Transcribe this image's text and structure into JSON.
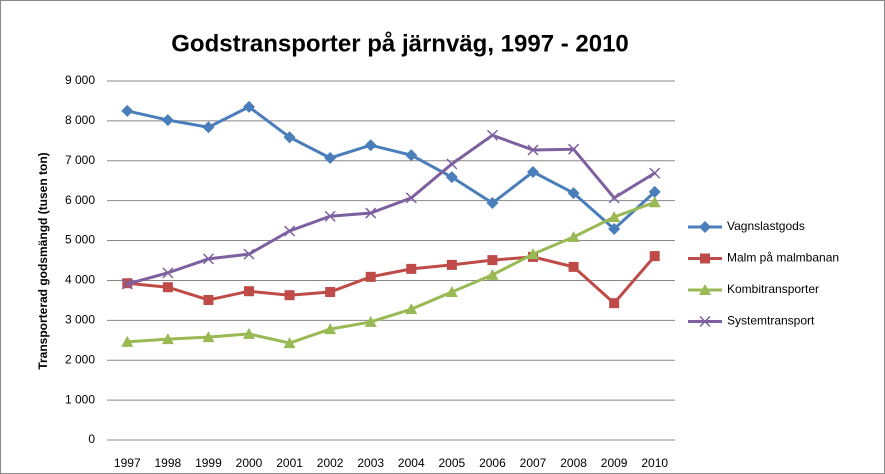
{
  "chart_data": {
    "type": "line",
    "title": "Godstransporter på järnväg, 1997 - 2010",
    "y_label": "Transporterad  godsmängd (tusen ton)",
    "categories": [
      "1997",
      "1998",
      "1999",
      "2000",
      "2001",
      "2002",
      "2003",
      "2004",
      "2005",
      "2006",
      "2007",
      "2008",
      "2009",
      "2010"
    ],
    "series": [
      {
        "name": "Vagnslastgods",
        "color": "#4a7ebb",
        "marker": "diamond",
        "values": [
          8250,
          8020,
          7840,
          8350,
          7590,
          7070,
          7390,
          7140,
          6590,
          5940,
          6720,
          6190,
          5290,
          6220
        ]
      },
      {
        "name": "Malm på malmbanan",
        "color": "#be4b48",
        "marker": "square",
        "values": [
          3930,
          3830,
          3510,
          3730,
          3630,
          3710,
          4090,
          4290,
          4390,
          4510,
          4590,
          4340,
          3430,
          4610
        ]
      },
      {
        "name": "Kombitransporter",
        "color": "#98b954",
        "marker": "triangle",
        "values": [
          2460,
          2530,
          2580,
          2660,
          2430,
          2780,
          2960,
          3280,
          3710,
          4140,
          4660,
          5090,
          5590,
          5960
        ]
      },
      {
        "name": "Systemtransport",
        "color": "#7d60a0",
        "marker": "x",
        "values": [
          3910,
          4190,
          4540,
          4660,
          5240,
          5610,
          5690,
          6070,
          6920,
          7640,
          7270,
          7290,
          6070,
          6690
        ]
      }
    ],
    "ylim": [
      0,
      9000
    ],
    "yticks": [
      0,
      {
        "value": 1000,
        "label": "1 000"
      },
      {
        "value": 2000,
        "label": "2 000"
      },
      {
        "value": 3000,
        "label": "3 000"
      },
      {
        "value": 4000,
        "label": "4 000"
      },
      {
        "value": 5000,
        "label": "5 000"
      },
      {
        "value": 6000,
        "label": "6 000"
      },
      {
        "value": 7000,
        "label": "7 000"
      },
      {
        "value": 8000,
        "label": "8 000"
      },
      {
        "value": 9000,
        "label": "9 000"
      }
    ],
    "grid": true,
    "legend": "right"
  }
}
